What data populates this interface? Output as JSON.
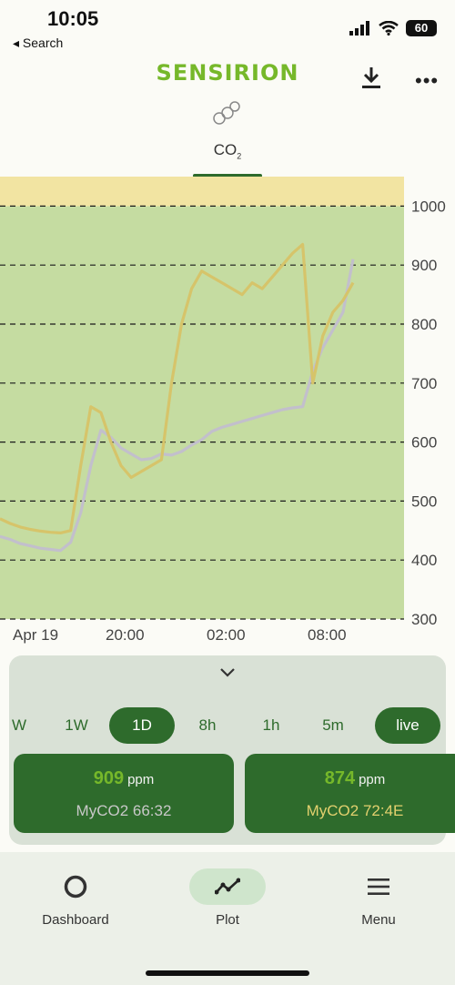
{
  "status_bar": {
    "time": "10:05",
    "back_label": "◂ Search",
    "battery": "60"
  },
  "header": {
    "logo_text": "SENSIRION",
    "download_icon": "download-icon",
    "more_icon": "more-horizontal-icon",
    "more_glyph": "•••"
  },
  "metric_tab": {
    "label": "CO",
    "subscript": "2"
  },
  "chart_data": {
    "type": "line",
    "title": "",
    "xlabel": "",
    "ylabel": "",
    "ylim": [
      300,
      1050
    ],
    "y_ticks": [
      "1000",
      "900",
      "800",
      "700",
      "600",
      "500",
      "400",
      "300"
    ],
    "x_ticks": [
      "Apr 19",
      "20:00",
      "02:00",
      "08:00"
    ],
    "grid": "dashed horizontal",
    "background_bands": [
      {
        "from": 300,
        "to": 1000,
        "color": "#c5dca1"
      },
      {
        "from": 1000,
        "to": 1050,
        "color": "#f2e4a2"
      }
    ],
    "series": [
      {
        "color": "#c2bfcc",
        "x_hours": [
          0,
          1,
          2,
          3,
          4,
          5,
          6,
          7,
          8,
          9,
          10,
          11,
          12,
          13,
          14,
          15,
          16,
          17,
          18,
          19,
          20,
          21,
          22,
          23,
          24,
          25,
          26,
          27,
          28,
          29,
          30,
          31,
          32,
          33,
          34,
          35
        ],
        "values": [
          440,
          435,
          428,
          424,
          420,
          418,
          416,
          430,
          480,
          560,
          620,
          608,
          590,
          580,
          570,
          572,
          580,
          578,
          584,
          595,
          604,
          618,
          625,
          630,
          635,
          640,
          645,
          650,
          655,
          658,
          660,
          720,
          760,
          790,
          820,
          910
        ]
      },
      {
        "color": "#d6c46a",
        "x_hours": [
          0,
          1,
          2,
          3,
          4,
          5,
          6,
          7,
          8,
          9,
          10,
          11,
          12,
          13,
          14,
          15,
          16,
          17,
          18,
          19,
          20,
          21,
          22,
          23,
          24,
          25,
          26,
          27,
          28,
          29,
          30,
          31,
          32,
          33,
          34,
          35
        ],
        "values": [
          470,
          462,
          456,
          452,
          449,
          447,
          446,
          450,
          560,
          660,
          650,
          600,
          560,
          540,
          550,
          560,
          570,
          700,
          800,
          860,
          890,
          880,
          870,
          860,
          850,
          870,
          860,
          880,
          900,
          920,
          935,
          700,
          780,
          820,
          840,
          870
        ]
      }
    ]
  },
  "control_panel": {
    "chevron_icon": "chevron-down-icon",
    "ranges": [
      {
        "label": "W",
        "active": false
      },
      {
        "label": "1W",
        "active": false
      },
      {
        "label": "1D",
        "active": true
      },
      {
        "label": "8h",
        "active": false
      },
      {
        "label": "1h",
        "active": false
      },
      {
        "label": "5m",
        "active": false
      },
      {
        "label": "live",
        "active": true
      }
    ],
    "sensors": [
      {
        "value": "909",
        "unit": "ppm",
        "name": "MyCO2 66:32",
        "name_color": "#c8c8c8"
      },
      {
        "value": "874",
        "unit": "ppm",
        "name": "MyCO2 72:4E",
        "name_color": "#e2d06e"
      }
    ]
  },
  "bottom_nav": {
    "items": [
      {
        "label": "Dashboard",
        "icon": "circle-icon",
        "active": false
      },
      {
        "label": "Plot",
        "icon": "line-chart-icon",
        "active": true
      },
      {
        "label": "Menu",
        "icon": "hamburger-icon",
        "active": false
      }
    ]
  },
  "colors": {
    "brand_green": "#76b82a",
    "dark_green": "#2e6b2c"
  }
}
